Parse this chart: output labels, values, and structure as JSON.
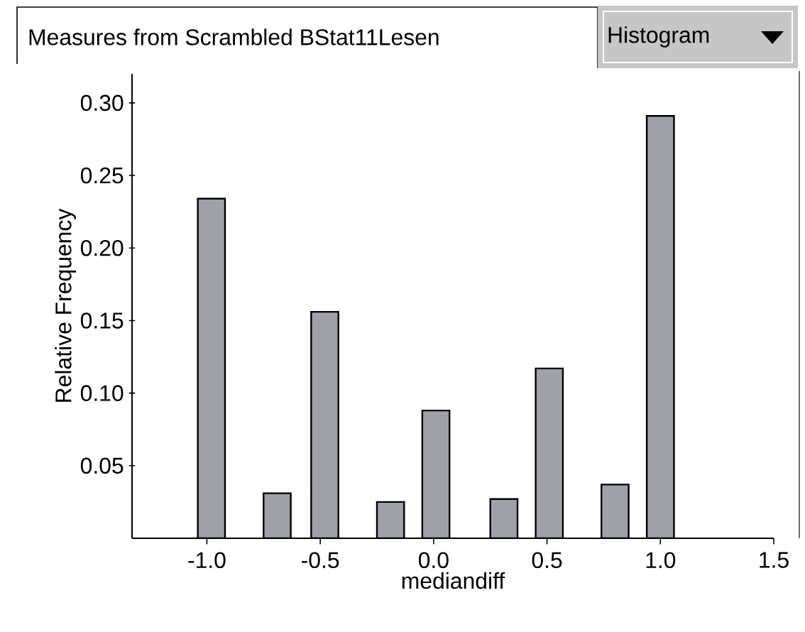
{
  "chart_data": {
    "type": "bar",
    "title": "Measures from Scrambled BStat11Lesen",
    "xlabel": "mediandiff",
    "ylabel": "Relative Frequency",
    "annotations": [
      "Histogram"
    ],
    "x": [
      -0.98,
      -0.69,
      -0.48,
      -0.19,
      0.01,
      0.31,
      0.51,
      0.8,
      1.0
    ],
    "values": [
      0.234,
      0.031,
      0.156,
      0.025,
      0.088,
      0.027,
      0.117,
      0.037,
      0.291
    ],
    "color": "#a0a0a8",
    "xlim": [
      -1.33,
      1.5
    ],
    "ylim": [
      0,
      0.32
    ],
    "xticks": [
      {
        "value": -1,
        "label": "-1.0"
      },
      {
        "value": -0.5,
        "label": "-0.5"
      },
      {
        "value": 0,
        "label": "0.0"
      },
      {
        "value": 0.5,
        "label": "0.5"
      },
      {
        "value": 1,
        "label": "1.0"
      },
      {
        "value": 1.5,
        "label": "1.5"
      }
    ],
    "yticks": [
      {
        "value": 0.05,
        "label": "0.05"
      },
      {
        "value": 0.1,
        "label": "0.10"
      },
      {
        "value": 0.15,
        "label": "0.15"
      },
      {
        "value": 0.2,
        "label": "0.20"
      },
      {
        "value": 0.25,
        "label": "0.25"
      },
      {
        "value": 0.3,
        "label": "0.30"
      }
    ],
    "grid": false
  }
}
